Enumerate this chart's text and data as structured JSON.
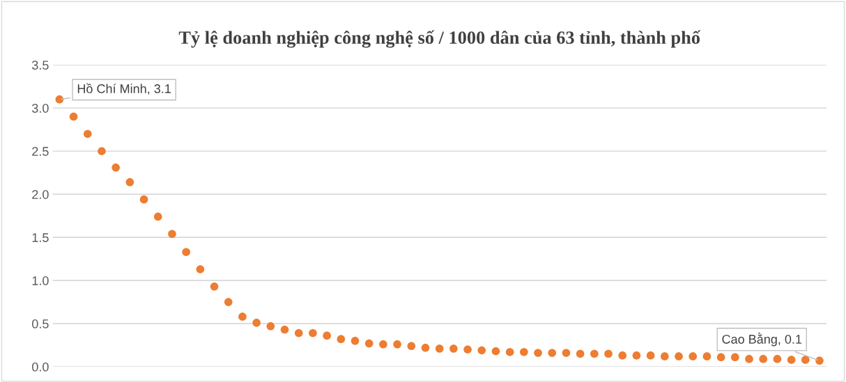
{
  "chart_data": {
    "type": "scatter",
    "title": "Tỷ lệ doanh nghiệp công nghệ số / 1000 dân của 63 tỉnh, thành phố",
    "categories": [
      null,
      null,
      null,
      null,
      null,
      null,
      null,
      null,
      null,
      null,
      null,
      null,
      null,
      null,
      null,
      null,
      null,
      null,
      null,
      null,
      null,
      null,
      null,
      null,
      null,
      null,
      null,
      null,
      null,
      null,
      null,
      null,
      null,
      null,
      null,
      null,
      null,
      null,
      null,
      null,
      null,
      null,
      null,
      null,
      null,
      null,
      null,
      null,
      null,
      null,
      null,
      null,
      null,
      null,
      null
    ],
    "values": [
      3.1,
      2.9,
      2.7,
      2.5,
      2.31,
      2.14,
      1.94,
      1.74,
      1.54,
      1.33,
      1.13,
      0.93,
      0.75,
      0.58,
      0.51,
      0.47,
      0.43,
      0.39,
      0.39,
      0.36,
      0.32,
      0.3,
      0.27,
      0.26,
      0.26,
      0.24,
      0.22,
      0.21,
      0.21,
      0.2,
      0.19,
      0.18,
      0.17,
      0.17,
      0.16,
      0.16,
      0.16,
      0.15,
      0.15,
      0.15,
      0.13,
      0.13,
      0.13,
      0.12,
      0.12,
      0.12,
      0.12,
      0.11,
      0.11,
      0.09,
      0.09,
      0.09,
      0.08,
      0.08,
      0.07
    ],
    "value_labels": [
      "Hồ Chí Minh, 3.1",
      null,
      null,
      null,
      null,
      null,
      null,
      null,
      null,
      null,
      null,
      null,
      null,
      null,
      null,
      null,
      null,
      null,
      null,
      null,
      null,
      null,
      null,
      null,
      null,
      null,
      null,
      null,
      null,
      null,
      null,
      null,
      null,
      null,
      null,
      null,
      null,
      null,
      null,
      null,
      null,
      null,
      null,
      null,
      null,
      null,
      null,
      null,
      null,
      null,
      null,
      null,
      null,
      null,
      "Cao Bằng, 0.1"
    ],
    "color": "#ed7d31",
    "marker": "circle",
    "ylim": [
      0,
      3.5
    ],
    "yticks": [
      {
        "value": 0,
        "label": "0.0"
      },
      {
        "value": 0.5,
        "label": "0.5"
      },
      {
        "value": 1,
        "label": "1.0"
      },
      {
        "value": 1.5,
        "label": "1.5"
      },
      {
        "value": 2,
        "label": "2.0"
      },
      {
        "value": 2.5,
        "label": "2.5"
      },
      {
        "value": 3,
        "label": "3.0"
      },
      {
        "value": 3.5,
        "label": "3.5"
      }
    ],
    "grid": "y",
    "tick_labels": "y"
  }
}
